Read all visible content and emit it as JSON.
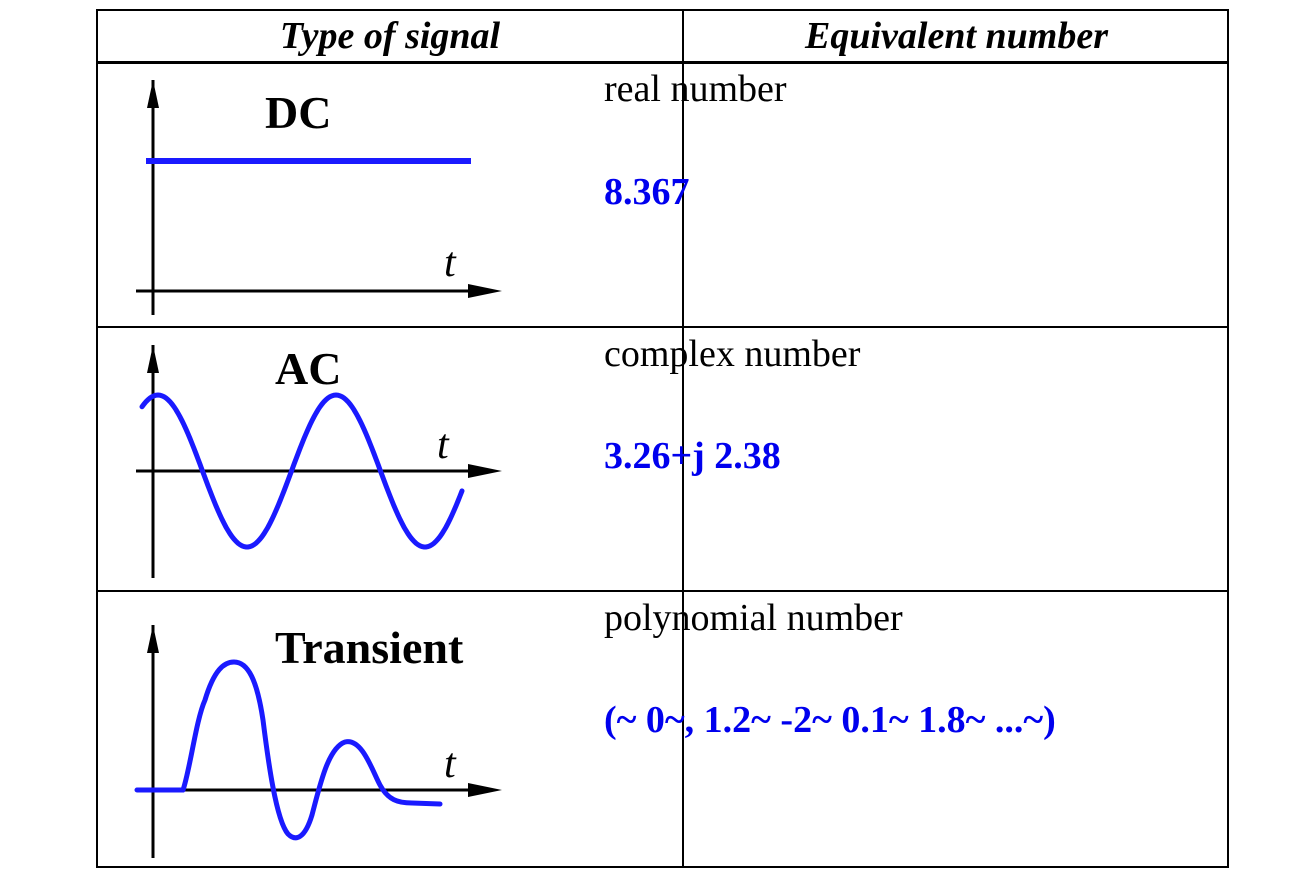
{
  "table": {
    "headers": [
      "Type of signal",
      "Equivalent number"
    ],
    "rows": [
      {
        "signal": "DC",
        "axis": "t",
        "kind": "real number",
        "value": "8.367"
      },
      {
        "signal": "AC",
        "axis": "t",
        "kind": "complex number",
        "value": "3.26+j 2.38"
      },
      {
        "signal": "Transient",
        "axis": "t",
        "kind": "polynomial number",
        "value": "(~ 0~, 1.2~ -2~ 0.1~ 1.8~ ...~)"
      }
    ]
  },
  "colors": {
    "signal": "#1a1aff",
    "value_text": "#0000ee",
    "lines": "#000000"
  }
}
